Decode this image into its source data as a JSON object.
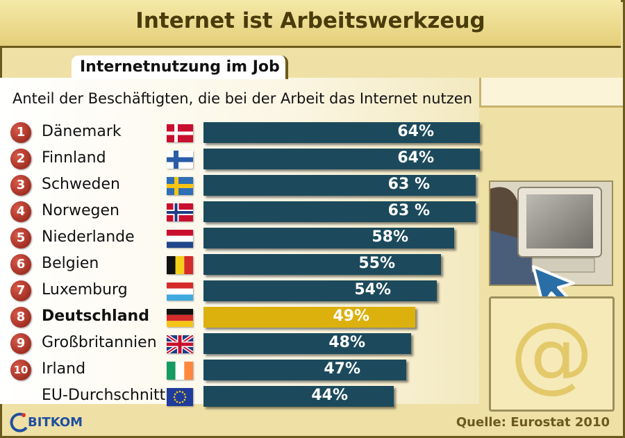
{
  "header": {
    "title": "Internet ist Arbeitswerkzeug"
  },
  "tab": {
    "label": "Internetnutzung im Job"
  },
  "subtitle": "Anteil der Beschäftigten, die bei der Arbeit das Internet nutzen",
  "source": "Quelle: Eurostat 2010",
  "logo": {
    "text": "BITKOM"
  },
  "at_sign": "@",
  "colors": {
    "bar": "#1c4a5c",
    "highlight": "#dcb10d",
    "rank_badge": "#b52b1e"
  },
  "chart_data": {
    "type": "bar",
    "orientation": "horizontal",
    "title": "Internetnutzung im Job",
    "subtitle": "Anteil der Beschäftigten, die bei der Arbeit das Internet nutzen",
    "unit": "%",
    "rows": [
      {
        "rank": "1",
        "country": "Dänemark",
        "value": 64,
        "label": "64%",
        "flag": "denmark-flag"
      },
      {
        "rank": "2",
        "country": "Finnland",
        "value": 64,
        "label": "64%",
        "flag": "finland-flag"
      },
      {
        "rank": "3",
        "country": "Schweden",
        "value": 63,
        "label": "63 %",
        "flag": "sweden-flag"
      },
      {
        "rank": "4",
        "country": "Norwegen",
        "value": 63,
        "label": "63 %",
        "flag": "norway-flag"
      },
      {
        "rank": "5",
        "country": "Niederlande",
        "value": 58,
        "label": "58%",
        "flag": "netherlands-flag"
      },
      {
        "rank": "6",
        "country": "Belgien",
        "value": 55,
        "label": "55%",
        "flag": "belgium-flag"
      },
      {
        "rank": "7",
        "country": "Luxemburg",
        "value": 54,
        "label": "54%",
        "flag": "luxembourg-flag"
      },
      {
        "rank": "8",
        "country": "Deutschland",
        "value": 49,
        "label": "49%",
        "flag": "germany-flag",
        "highlight": true
      },
      {
        "rank": "9",
        "country": "Großbritannien",
        "value": 48,
        "label": "48%",
        "flag": "uk-flag"
      },
      {
        "rank": "10",
        "country": "Irland",
        "value": 47,
        "label": "47%",
        "flag": "ireland-flag"
      },
      {
        "rank": "",
        "country": "EU-Durchschnitt",
        "value": 44,
        "label": "44%",
        "flag": "eu-flag"
      }
    ]
  }
}
